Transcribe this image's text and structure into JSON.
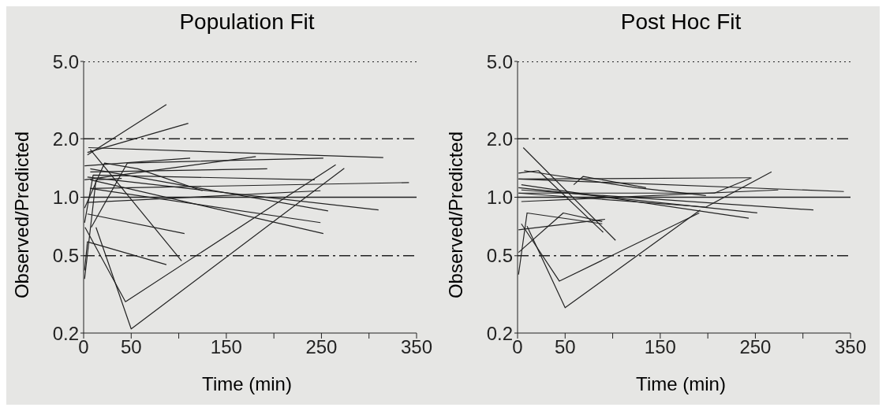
{
  "chart_data": [
    {
      "type": "line",
      "title": "Population Fit",
      "xlabel": "Time (min)",
      "ylabel": "Observed/Predicted",
      "log": "y",
      "marker": "none",
      "line_style": "solid",
      "xlim": [
        0,
        350
      ],
      "xticks": [
        0,
        50,
        {
          "value": 100,
          "label": null
        },
        150,
        {
          "value": 200,
          "label": null
        },
        250,
        {
          "value": 300,
          "label": null
        },
        350
      ],
      "ylim": [
        0.2,
        5
      ],
      "yticks": [
        {
          "value": 0.2,
          "label": "0.2"
        },
        {
          "value": 0.5,
          "label": "0.5"
        },
        {
          "value": 1,
          "label": "1.0"
        },
        {
          "value": 2,
          "label": "2.0"
        },
        {
          "value": 5,
          "label": "5.0"
        }
      ],
      "ref_lines": [
        {
          "axis": "y",
          "value": 5,
          "line_style": "dotted"
        },
        {
          "axis": "y",
          "value": 2,
          "line_style": "dashed"
        },
        {
          "axis": "y",
          "value": 1,
          "line_style": "solid"
        },
        {
          "axis": "y",
          "value": 0.5,
          "line_style": "dashed"
        }
      ],
      "series": [
        {
          "color": "#222222",
          "x": [
            5,
            315
          ],
          "values": [
            1.8,
            1.6
          ]
        },
        {
          "color": "#222222",
          "x": [
            1.5,
            44,
            265
          ],
          "values": [
            0.7,
            0.29,
            1.47
          ]
        },
        {
          "color": "#222222",
          "x": [
            13,
            50,
            274
          ],
          "values": [
            0.7,
            0.21,
            1.41
          ]
        },
        {
          "color": "#222222",
          "x": [
            4,
            87
          ],
          "values": [
            1.65,
            3.0
          ]
        },
        {
          "color": "#222222",
          "x": [
            4,
            110
          ],
          "values": [
            1.7,
            2.4
          ]
        },
        {
          "color": "#222222",
          "x": [
            1,
            112
          ],
          "values": [
            1.45,
            1.59
          ]
        },
        {
          "color": "#222222",
          "x": [
            8,
            46,
            252
          ],
          "values": [
            0.7,
            1.5,
            1.59
          ]
        },
        {
          "color": "#222222",
          "x": [
            1,
            181
          ],
          "values": [
            1.23,
            1.62
          ]
        },
        {
          "color": "#222222",
          "x": [
            7,
            193
          ],
          "values": [
            1.35,
            1.4
          ]
        },
        {
          "color": "#222222",
          "x": [
            7,
            342
          ],
          "values": [
            1.11,
            1.19
          ]
        },
        {
          "color": "#222222",
          "x": [
            4,
            310
          ],
          "values": [
            1.27,
            0.86
          ]
        },
        {
          "color": "#222222",
          "x": [
            7,
            252
          ],
          "values": [
            1.23,
            0.65
          ]
        },
        {
          "color": "#222222",
          "x": [
            7,
            249
          ],
          "values": [
            1.11,
            0.74
          ]
        },
        {
          "color": "#222222",
          "x": [
            7,
            257
          ],
          "values": [
            1.4,
            0.85
          ]
        },
        {
          "color": "#222222",
          "x": [
            4,
            106
          ],
          "values": [
            0.82,
            0.65
          ]
        },
        {
          "color": "#222222",
          "x": [
            1,
            4,
            87
          ],
          "values": [
            0.42,
            0.59,
            0.45
          ]
        },
        {
          "color": "#222222",
          "x": [
            7,
            103
          ],
          "values": [
            1.76,
            0.47
          ]
        },
        {
          "color": "#222222",
          "x": [
            1,
            22,
            57,
            125
          ],
          "values": [
            0.88,
            1.5,
            1.4,
            1.08
          ]
        },
        {
          "color": "#222222",
          "x": [
            1,
            13,
            40
          ],
          "values": [
            0.38,
            1.23,
            1.25
          ]
        },
        {
          "color": "#222222",
          "x": [
            1,
            10,
            243
          ],
          "values": [
            0.74,
            1.3,
            1.23
          ]
        },
        {
          "color": "#222222",
          "x": [
            4,
            249
          ],
          "values": [
            0.94,
            1.08
          ]
        }
      ]
    },
    {
      "type": "line",
      "title": "Post Hoc Fit",
      "xlabel": "Time (min)",
      "ylabel": "Observed/Predicted",
      "log": "y",
      "marker": "none",
      "line_style": "solid",
      "xlim": [
        0,
        350
      ],
      "xticks": [
        0,
        50,
        {
          "value": 100,
          "label": null
        },
        150,
        {
          "value": 200,
          "label": null
        },
        250,
        {
          "value": 300,
          "label": null
        },
        350
      ],
      "ylim": [
        0.2,
        5
      ],
      "yticks": [
        {
          "value": 0.2,
          "label": "0.2"
        },
        {
          "value": 0.5,
          "label": "0.5"
        },
        {
          "value": 1,
          "label": "1.0"
        },
        {
          "value": 2,
          "label": "2.0"
        },
        {
          "value": 5,
          "label": "5.0"
        }
      ],
      "ref_lines": [
        {
          "axis": "y",
          "value": 5,
          "line_style": "dotted"
        },
        {
          "axis": "y",
          "value": 2,
          "line_style": "dashed"
        },
        {
          "axis": "y",
          "value": 1,
          "line_style": "solid"
        },
        {
          "axis": "y",
          "value": 0.5,
          "line_style": "dashed"
        }
      ],
      "series": [
        {
          "color": "#222222",
          "x": [
            4,
            44,
            191
          ],
          "values": [
            0.73,
            0.37,
            0.83
          ]
        },
        {
          "color": "#222222",
          "x": [
            10,
            50,
            192
          ],
          "values": [
            0.71,
            0.27,
            0.86
          ]
        },
        {
          "color": "#222222",
          "x": [
            6,
            103
          ],
          "values": [
            1.8,
            0.6
          ]
        },
        {
          "color": "#222222",
          "x": [
            1,
            22,
            90
          ],
          "values": [
            1.33,
            1.37,
            0.66
          ]
        },
        {
          "color": "#222222",
          "x": [
            1,
            198,
            267
          ],
          "values": [
            1.05,
            0.89,
            1.35
          ]
        },
        {
          "color": "#222222",
          "x": [
            59,
            69,
            135
          ],
          "values": [
            1.16,
            1.28,
            1.12
          ]
        },
        {
          "color": "#222222",
          "x": [
            1,
            343
          ],
          "values": [
            1.24,
            1.07
          ]
        },
        {
          "color": "#222222",
          "x": [
            4,
            311
          ],
          "values": [
            1.09,
            0.86
          ]
        },
        {
          "color": "#222222",
          "x": [
            4,
            243
          ],
          "values": [
            1.16,
            0.78
          ]
        },
        {
          "color": "#222222",
          "x": [
            1,
            252
          ],
          "values": [
            1.12,
            0.83
          ]
        },
        {
          "color": "#222222",
          "x": [
            4,
            274
          ],
          "values": [
            0.95,
            1.09
          ]
        },
        {
          "color": "#222222",
          "x": [
            1,
            245
          ],
          "values": [
            1.24,
            1.26
          ]
        },
        {
          "color": "#222222",
          "x": [
            1,
            207,
            246
          ],
          "values": [
            1.05,
            1.05,
            1.26
          ]
        },
        {
          "color": "#222222",
          "x": [
            1,
            10,
            89
          ],
          "values": [
            0.4,
            0.83,
            0.73
          ]
        },
        {
          "color": "#222222",
          "x": [
            1,
            92
          ],
          "values": [
            0.68,
            0.77
          ]
        },
        {
          "color": "#222222",
          "x": [
            7,
            125,
            198
          ],
          "values": [
            1.37,
            1.12,
            1.02
          ]
        },
        {
          "color": "#222222",
          "x": [
            1,
            48,
            89
          ],
          "values": [
            0.52,
            0.83,
            0.75
          ]
        }
      ]
    }
  ]
}
